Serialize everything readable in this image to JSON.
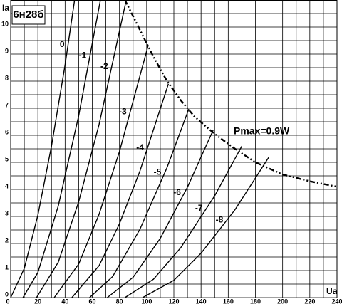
{
  "chart_data": {
    "type": "line",
    "title": "6н28б",
    "x_label": "Ua",
    "y_label": "Ia",
    "annotation": "Pmax=0.9W",
    "color": "#000000",
    "grid": true,
    "xlim": [
      0,
      240
    ],
    "ylim": [
      0,
      11
    ],
    "xticks": [
      0,
      20,
      40,
      60,
      80,
      100,
      120,
      140,
      160,
      180,
      200,
      220,
      240
    ],
    "yticks": [
      0,
      1,
      2,
      3,
      4,
      5,
      6,
      7,
      8,
      9,
      10
    ],
    "x_minor_grid": [
      10,
      30,
      50,
      70,
      90,
      110,
      130,
      150,
      170,
      190,
      210,
      230
    ],
    "y_minor_grid": [
      0.5,
      1.5,
      2.5,
      3.5,
      4.5,
      5.5,
      6.5,
      7.5,
      8.5,
      9.5,
      10.5
    ],
    "series": [
      {
        "name": "0",
        "x": [
          0,
          10,
          20,
          30,
          40,
          47
        ],
        "values": [
          0,
          1.08,
          3.05,
          5.6,
          8.6,
          11
        ]
      },
      {
        "name": "-1",
        "x": [
          9,
          20,
          35,
          50,
          66
        ],
        "values": [
          0,
          0.93,
          3.39,
          6.72,
          11
        ]
      },
      {
        "name": "-2",
        "x": [
          19,
          35,
          50,
          65,
          85
        ],
        "values": [
          0,
          1.31,
          3.54,
          6.4,
          11
        ]
      },
      {
        "name": "-3",
        "x": [
          32,
          50,
          65,
          80,
          101
        ],
        "values": [
          0,
          1.24,
          3.08,
          5.4,
          9.3
        ]
      },
      {
        "name": "-4",
        "x": [
          45,
          65,
          80,
          95,
          116
        ],
        "values": [
          0,
          1.18,
          2.73,
          4.67,
          7.9
        ]
      },
      {
        "name": "-5",
        "x": [
          58,
          75,
          95,
          115,
          131
        ],
        "values": [
          0,
          0.78,
          2.52,
          4.81,
          6.97
        ]
      },
      {
        "name": "-6",
        "x": [
          71,
          90,
          110,
          130,
          149
        ],
        "values": [
          0,
          0.75,
          2.19,
          4.08,
          6.2
        ]
      },
      {
        "name": "-7",
        "x": [
          84,
          105,
          125,
          150,
          170
        ],
        "values": [
          0,
          0.68,
          1.84,
          3.76,
          5.6
        ]
      },
      {
        "name": "-8",
        "x": [
          97,
          120,
          140,
          165,
          190
        ],
        "values": [
          0,
          0.64,
          1.64,
          3.25,
          5.2
        ]
      }
    ],
    "pmax": {
      "x": [
        84,
        95,
        105,
        115,
        125,
        135,
        150,
        165,
        180,
        200,
        220,
        240
      ],
      "values": [
        11,
        9.9,
        8.9,
        8.0,
        7.3,
        6.7,
        6.05,
        5.5,
        5.0,
        4.55,
        4.3,
        4.1
      ]
    }
  }
}
